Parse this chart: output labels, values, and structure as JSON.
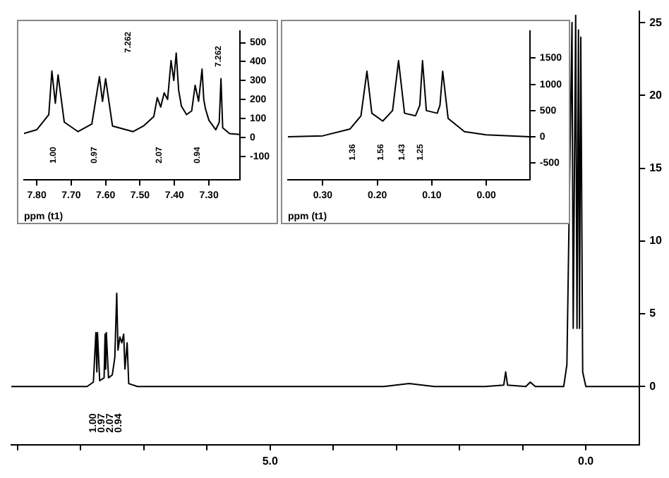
{
  "chart_data": [
    {
      "type": "line",
      "xlim": [
        9.1,
        -0.85
      ],
      "ylim": [
        -4,
        25.8
      ],
      "xticks": [
        {
          "value": 9,
          "label": null
        },
        {
          "value": 8,
          "label": null
        },
        {
          "value": 7,
          "label": null
        },
        {
          "value": 6,
          "label": null
        },
        {
          "value": 5,
          "label": "5.0"
        },
        {
          "value": 4,
          "label": null
        },
        {
          "value": 3,
          "label": null
        },
        {
          "value": 2,
          "label": null
        },
        {
          "value": 1,
          "label": null
        },
        {
          "value": 0,
          "label": "0.0"
        }
      ],
      "yticks": [
        0,
        5,
        10,
        15,
        20,
        25
      ],
      "grid": false,
      "marker": "none",
      "line_style": "solid",
      "series": [
        {
          "color": "#000000",
          "x": [
            9.1,
            7.9,
            7.8,
            7.76,
            7.745,
            7.735,
            7.7,
            7.63,
            7.615,
            7.605,
            7.595,
            7.56,
            7.5,
            7.46,
            7.43,
            7.41,
            7.38,
            7.35,
            7.32,
            7.3,
            7.265,
            7.24,
            7.1,
            3.2,
            2.8,
            2.4,
            1.6,
            1.3,
            1.27,
            1.24,
            0.95,
            0.88,
            0.8,
            0.35,
            0.3,
            0.219,
            0.2,
            0.161,
            0.14,
            0.117,
            0.1,
            0.08,
            0.05,
            0,
            -0.85
          ],
          "values": [
            0,
            0,
            0.3,
            3.7,
            1,
            3.7,
            0.4,
            0.6,
            3.6,
            1.2,
            3.7,
            0.6,
            0.8,
            2,
            6.4,
            2.5,
            3.4,
            3,
            3.6,
            1.2,
            3,
            0.2,
            0,
            0,
            0.2,
            0,
            0,
            0.1,
            1,
            0.1,
            0,
            0.3,
            0,
            0,
            1.5,
            25,
            4,
            25.5,
            4,
            24.5,
            4,
            24,
            1,
            0,
            0
          ]
        }
      ],
      "annotations": [
        "1.00",
        "0.97",
        "2.07",
        "0.94"
      ]
    },
    {
      "type": "line",
      "xlabel": "ppm (t1)",
      "xlim": [
        7.837,
        7.21
      ],
      "ylim": [
        -225,
        560
      ],
      "xticks": [
        {
          "value": 7.8,
          "label": "7.80"
        },
        {
          "value": 7.7,
          "label": "7.70"
        },
        {
          "value": 7.6,
          "label": "7.60"
        },
        {
          "value": 7.5,
          "label": "7.50"
        },
        {
          "value": 7.4,
          "label": "7.40"
        },
        {
          "value": 7.3,
          "label": "7.30"
        }
      ],
      "yticks": [
        -100,
        0,
        100,
        200,
        300,
        400,
        500
      ],
      "grid": false,
      "marker": "none",
      "line_style": "solid",
      "series": [
        {
          "color": "#000000",
          "x": [
            7.837,
            7.8,
            7.765,
            7.756,
            7.746,
            7.738,
            7.72,
            7.68,
            7.64,
            7.618,
            7.609,
            7.6,
            7.58,
            7.52,
            7.49,
            7.46,
            7.45,
            7.44,
            7.43,
            7.42,
            7.41,
            7.402,
            7.395,
            7.388,
            7.38,
            7.365,
            7.35,
            7.34,
            7.33,
            7.32,
            7.315,
            7.31,
            7.3,
            7.28,
            7.27,
            7.265,
            7.26,
            7.24,
            7.21
          ],
          "values": [
            20,
            40,
            120,
            350,
            180,
            330,
            80,
            30,
            70,
            320,
            190,
            310,
            60,
            30,
            60,
            110,
            210,
            160,
            235,
            200,
            405,
            300,
            445,
            250,
            165,
            120,
            140,
            275,
            190,
            360,
            200,
            150,
            90,
            40,
            80,
            310,
            50,
            20,
            15
          ]
        }
      ],
      "annotations": [
        "7.262",
        "7.262",
        "1.00",
        "0.97",
        "2.07",
        "0.94"
      ]
    },
    {
      "type": "line",
      "xlabel": "ppm (t1)",
      "xlim": [
        0.364,
        -0.08
      ],
      "ylim": [
        -820,
        2010
      ],
      "xticks": [
        {
          "value": 0.3,
          "label": "0.30"
        },
        {
          "value": 0.2,
          "label": "0.20"
        },
        {
          "value": 0.1,
          "label": "0.10"
        },
        {
          "value": 0,
          "label": "0.00"
        }
      ],
      "yticks": [
        -500,
        0,
        500,
        1000,
        1500
      ],
      "grid": false,
      "marker": "none",
      "line_style": "solid",
      "series": [
        {
          "color": "#000000",
          "x": [
            0.364,
            0.3,
            0.25,
            0.23,
            0.219,
            0.21,
            0.19,
            0.172,
            0.161,
            0.15,
            0.13,
            0.122,
            0.117,
            0.11,
            0.09,
            0.085,
            0.08,
            0.07,
            0.04,
            0,
            -0.08
          ],
          "values": [
            0,
            20,
            150,
            400,
            1250,
            450,
            300,
            500,
            1450,
            450,
            400,
            600,
            1450,
            500,
            450,
            600,
            1250,
            350,
            100,
            40,
            0
          ]
        }
      ],
      "annotations": [
        "1.36",
        "1.56",
        "1.43",
        "1.25"
      ]
    }
  ]
}
